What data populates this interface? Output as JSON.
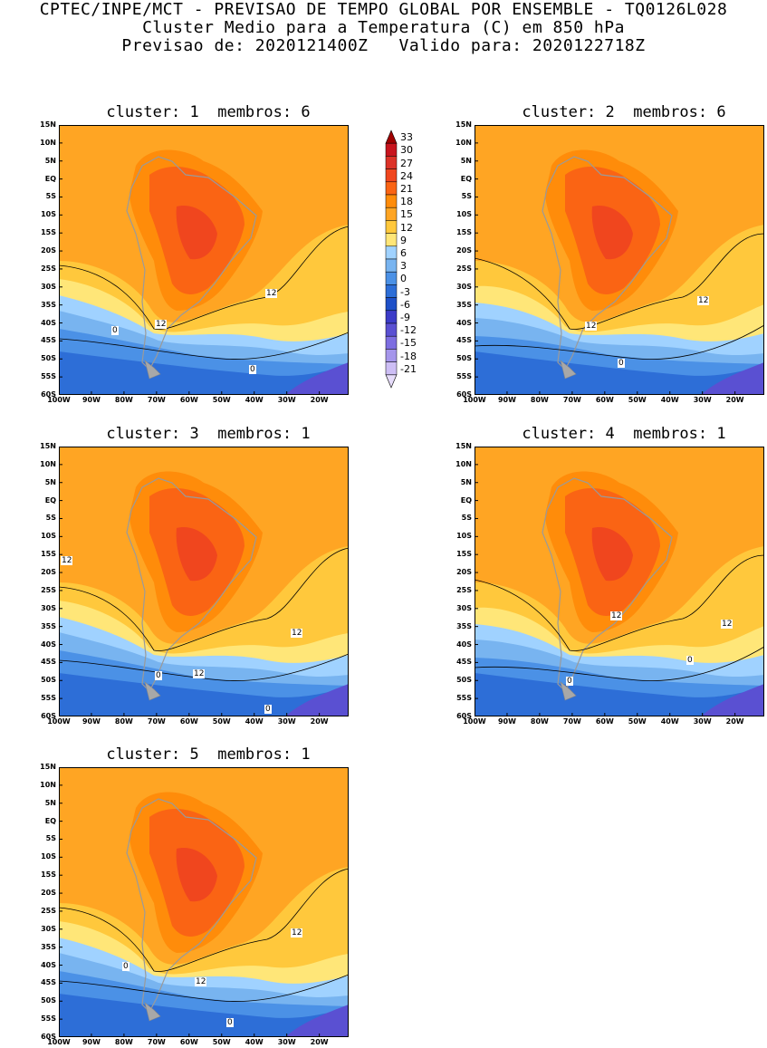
{
  "header": {
    "line1": "CPTEC/INPE/MCT - PREVISAO DE TEMPO GLOBAL POR ENSEMBLE - TQ0126L028",
    "line2": "Cluster Medio para a Temperatura (C) em 850 hPa",
    "line3": "Previsao de: 2020121400Z   Valido para: 2020122718Z"
  },
  "panels": [
    {
      "title": "cluster: 1  membros: 6",
      "contour_labels": [
        "12",
        "12",
        "0",
        "0"
      ]
    },
    {
      "title": "cluster: 2  membros: 6",
      "contour_labels": [
        "12",
        "12",
        "0"
      ]
    },
    {
      "title": "cluster: 3  membros: 1",
      "contour_labels": [
        "12",
        "12",
        "12",
        "0",
        "0"
      ]
    },
    {
      "title": "cluster: 4  membros: 1",
      "contour_labels": [
        "12",
        "12",
        "0",
        "0"
      ]
    },
    {
      "title": "cluster: 5  membros: 1",
      "contour_labels": [
        "12",
        "12",
        "0",
        "0"
      ]
    }
  ],
  "lat_labels": [
    "15N",
    "10N",
    "5N",
    "EQ",
    "5S",
    "10S",
    "15S",
    "20S",
    "25S",
    "30S",
    "35S",
    "40S",
    "45S",
    "50S",
    "55S",
    "60S"
  ],
  "lon_labels": [
    "100W",
    "90W",
    "80W",
    "70W",
    "60W",
    "50W",
    "40W",
    "30W",
    "20W"
  ],
  "colorbar": {
    "labels": [
      "33",
      "30",
      "27",
      "24",
      "21",
      "18",
      "15",
      "12",
      "9",
      "6",
      "3",
      "0",
      "-3",
      "-6",
      "-9",
      "-12",
      "-15",
      "-18",
      "-21"
    ],
    "colors": [
      "#a00000",
      "#c8141e",
      "#dc3228",
      "#f0461e",
      "#fa6414",
      "#ff8c0a",
      "#ffa523",
      "#ffc83c",
      "#ffe678",
      "#a0d2ff",
      "#78b4f0",
      "#4b91e6",
      "#2d6ed7",
      "#1e50c8",
      "#3c3cc8",
      "#5a50d2",
      "#7d6ee1",
      "#a596eb",
      "#cdbef5",
      "#e6dcfa"
    ]
  }
}
